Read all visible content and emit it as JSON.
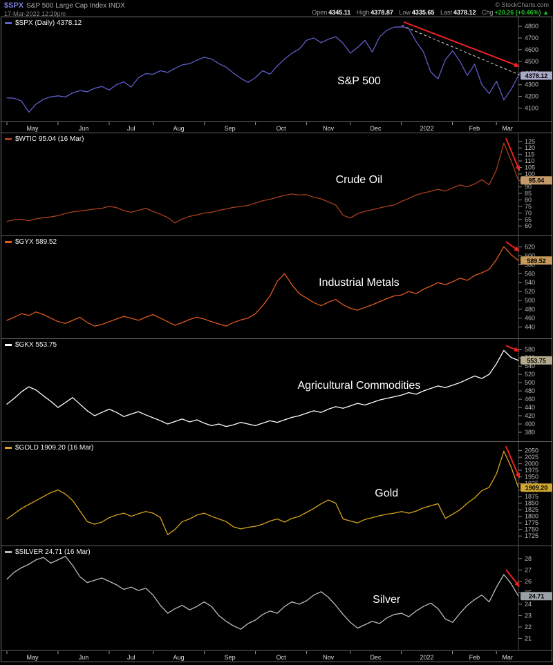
{
  "header": {
    "symbol": "$SPX",
    "title": "S&P 500 Large Cap Index INDX",
    "timestamp": "17-Mar-2022 12:29pm",
    "credit": "© StockCharts.com",
    "quote": {
      "open_label": "Open",
      "open": "4345.11",
      "high_label": "High",
      "high": "4378.87",
      "low_label": "Low",
      "low": "4335.65",
      "last_label": "Last",
      "last": "4378.12",
      "chg_label": "Chg",
      "chg": "+20.26 (+0.46%) ▲"
    },
    "accent_color": "#7b7bd9",
    "chg_color": "#22c32a"
  },
  "x_axis": {
    "months": [
      "May",
      "Jun",
      "Jul",
      "Aug",
      "Sep",
      "Oct",
      "Nov",
      "Dec",
      "2022",
      "Feb",
      "Mar"
    ],
    "positions": [
      0,
      0.1,
      0.2,
      0.286,
      0.386,
      0.486,
      0.586,
      0.671,
      0.771,
      0.871,
      0.957
    ]
  },
  "chart_data": [
    {
      "type": "line",
      "id": "spx",
      "legend": "$SPX (Daily) 4378.12",
      "label": "S&P 500",
      "line_color": "#5e5ecb",
      "tag_bg": "#a9a9c9",
      "price_tag": "4378.12",
      "arrow_color": "#ee2222",
      "trendline": true,
      "ylim": [
        4050,
        4830
      ],
      "yticks": [
        4100,
        4200,
        4300,
        4400,
        4500,
        4600,
        4700,
        4800
      ],
      "values": [
        4188,
        4185,
        4160,
        4065,
        4135,
        4175,
        4196,
        4205,
        4195,
        4230,
        4250,
        4240,
        4270,
        4285,
        4255,
        4300,
        4325,
        4280,
        4360,
        4395,
        4390,
        4420,
        4405,
        4440,
        4470,
        4480,
        4510,
        4535,
        4520,
        4480,
        4450,
        4400,
        4355,
        4320,
        4360,
        4420,
        4390,
        4460,
        4520,
        4570,
        4605,
        4680,
        4700,
        4660,
        4690,
        4710,
        4655,
        4570,
        4620,
        4680,
        4580,
        4710,
        4766,
        4793,
        4796,
        4780,
        4670,
        4580,
        4410,
        4350,
        4515,
        4590,
        4500,
        4380,
        4475,
        4300,
        4225,
        4330,
        4170,
        4260,
        4378
      ]
    },
    {
      "type": "line",
      "id": "wtic",
      "legend": "$WTIC 95.04 (16 Mar)",
      "label": "Crude Oil",
      "line_color": "#a8401c",
      "tag_bg": "#c59a6b",
      "price_tag": "95.04",
      "arrow_color": "#ee2222",
      "trendline": false,
      "ylim": [
        58,
        127
      ],
      "yticks": [
        60,
        65,
        70,
        75,
        80,
        85,
        90,
        95,
        100,
        105,
        110,
        115,
        120,
        125
      ],
      "values": [
        63.5,
        64.8,
        65.2,
        64.0,
        65.5,
        66.4,
        66.9,
        68.0,
        69.6,
        70.9,
        71.5,
        72.2,
        73.0,
        73.5,
        75.2,
        74.1,
        71.8,
        70.5,
        72.0,
        73.6,
        71.2,
        69.0,
        66.5,
        62.3,
        65.4,
        67.4,
        68.5,
        69.9,
        70.5,
        72.0,
        73.1,
        74.3,
        75.0,
        75.8,
        77.6,
        79.4,
        80.5,
        82.1,
        83.5,
        84.6,
        83.8,
        84.1,
        82.0,
        80.8,
        78.5,
        76.1,
        68.2,
        66.2,
        69.5,
        71.2,
        72.5,
        73.8,
        75.2,
        76.1,
        78.9,
        81.2,
        83.8,
        85.4,
        86.6,
        88.2,
        86.8,
        89.2,
        91.5,
        90.1,
        92.3,
        95.5,
        91.6,
        103.4,
        123.7,
        110.2,
        95.04
      ]
    },
    {
      "type": "line",
      "id": "gyx",
      "legend": "$GYX 589.52",
      "label": "Industrial Metals",
      "line_color": "#e05a1e",
      "tag_bg": "#c59a5a",
      "price_tag": "589.52",
      "arrow_color": "#ee2222",
      "trendline": false,
      "ylim": [
        430,
        632
      ],
      "yticks": [
        440,
        460,
        480,
        500,
        520,
        540,
        560,
        580,
        600,
        620
      ],
      "values": [
        455,
        462,
        470,
        466,
        474,
        468,
        460,
        452,
        448,
        455,
        462,
        450,
        442,
        446,
        452,
        458,
        464,
        460,
        455,
        462,
        468,
        460,
        452,
        444,
        450,
        457,
        462,
        458,
        452,
        447,
        442,
        450,
        456,
        460,
        470,
        488,
        510,
        543,
        560,
        535,
        515,
        505,
        495,
        488,
        496,
        502,
        490,
        482,
        478,
        484,
        490,
        497,
        504,
        510,
        512,
        520,
        515,
        525,
        532,
        540,
        535,
        542,
        550,
        545,
        556,
        562,
        570,
        592,
        621,
        603,
        589.52
      ]
    },
    {
      "type": "line",
      "id": "gkx",
      "legend": "$GKX 553.75",
      "label": "Agricultural Commodities",
      "line_color": "#ffffff",
      "tag_bg": "#b3ab8c",
      "price_tag": "553.75",
      "arrow_color": "#ee2222",
      "trendline": false,
      "ylim": [
        375,
        592
      ],
      "yticks": [
        380,
        400,
        420,
        440,
        460,
        480,
        500,
        520,
        540,
        560,
        580
      ],
      "values": [
        448,
        462,
        478,
        490,
        482,
        468,
        455,
        440,
        452,
        464,
        448,
        432,
        420,
        428,
        436,
        428,
        418,
        424,
        430,
        422,
        415,
        408,
        400,
        406,
        412,
        405,
        410,
        402,
        396,
        400,
        394,
        398,
        404,
        400,
        396,
        402,
        408,
        404,
        410,
        416,
        420,
        426,
        432,
        428,
        436,
        442,
        438,
        444,
        450,
        446,
        452,
        458,
        462,
        466,
        470,
        476,
        472,
        480,
        486,
        492,
        488,
        494,
        500,
        508,
        516,
        510,
        520,
        546,
        578,
        561,
        553.75
      ]
    },
    {
      "type": "line",
      "id": "gold",
      "legend": "$GOLD 1909.20 (16 Mar)",
      "label": "Gold",
      "line_color": "#d9a520",
      "tag_bg": "#cfa62f",
      "price_tag": "1909.20",
      "arrow_color": "#ee2222",
      "trendline": false,
      "ylim": [
        1715,
        2062
      ],
      "yticks": [
        1725,
        1750,
        1775,
        1800,
        1825,
        1850,
        1875,
        1900,
        1925,
        1950,
        1975,
        2000,
        2025,
        2050
      ],
      "values": [
        1790,
        1810,
        1830,
        1845,
        1860,
        1875,
        1890,
        1900,
        1885,
        1860,
        1820,
        1780,
        1770,
        1778,
        1795,
        1805,
        1812,
        1800,
        1810,
        1818,
        1812,
        1795,
        1730,
        1750,
        1780,
        1790,
        1805,
        1812,
        1800,
        1790,
        1780,
        1760,
        1752,
        1758,
        1762,
        1770,
        1782,
        1790,
        1778,
        1792,
        1800,
        1815,
        1830,
        1848,
        1862,
        1850,
        1790,
        1782,
        1775,
        1788,
        1795,
        1802,
        1808,
        1812,
        1818,
        1812,
        1820,
        1832,
        1840,
        1848,
        1792,
        1808,
        1825,
        1850,
        1870,
        1898,
        1910,
        1962,
        2048,
        1988,
        1909.2
      ]
    },
    {
      "type": "line",
      "id": "silver",
      "legend": "$SILVER 24.71 (16 Mar)",
      "label": "Silver",
      "line_color": "#b9bec4",
      "tag_bg": "#9aa0a6",
      "price_tag": "24.71",
      "arrow_color": "#ee2222",
      "trendline": false,
      "ylim": [
        20.6,
        28.6
      ],
      "yticks": [
        21,
        22,
        23,
        24,
        25,
        26,
        27,
        28
      ],
      "values": [
        26.2,
        26.8,
        27.2,
        27.5,
        27.9,
        28.1,
        27.6,
        27.9,
        28.2,
        27.4,
        26.4,
        25.9,
        26.1,
        26.3,
        26.0,
        25.7,
        25.3,
        25.5,
        25.2,
        25.4,
        24.8,
        23.9,
        23.2,
        23.6,
        23.9,
        23.5,
        23.8,
        24.2,
        23.8,
        23.0,
        22.5,
        22.1,
        21.8,
        22.3,
        22.6,
        23.1,
        23.4,
        23.2,
        23.8,
        24.2,
        24.0,
        24.3,
        24.8,
        25.1,
        24.6,
        23.9,
        23.1,
        22.4,
        21.9,
        22.2,
        22.5,
        22.3,
        22.8,
        23.1,
        23.2,
        22.9,
        23.4,
        23.8,
        24.1,
        23.6,
        22.7,
        22.4,
        23.2,
        23.9,
        24.4,
        24.8,
        24.2,
        25.5,
        26.6,
        25.8,
        24.71
      ]
    }
  ]
}
